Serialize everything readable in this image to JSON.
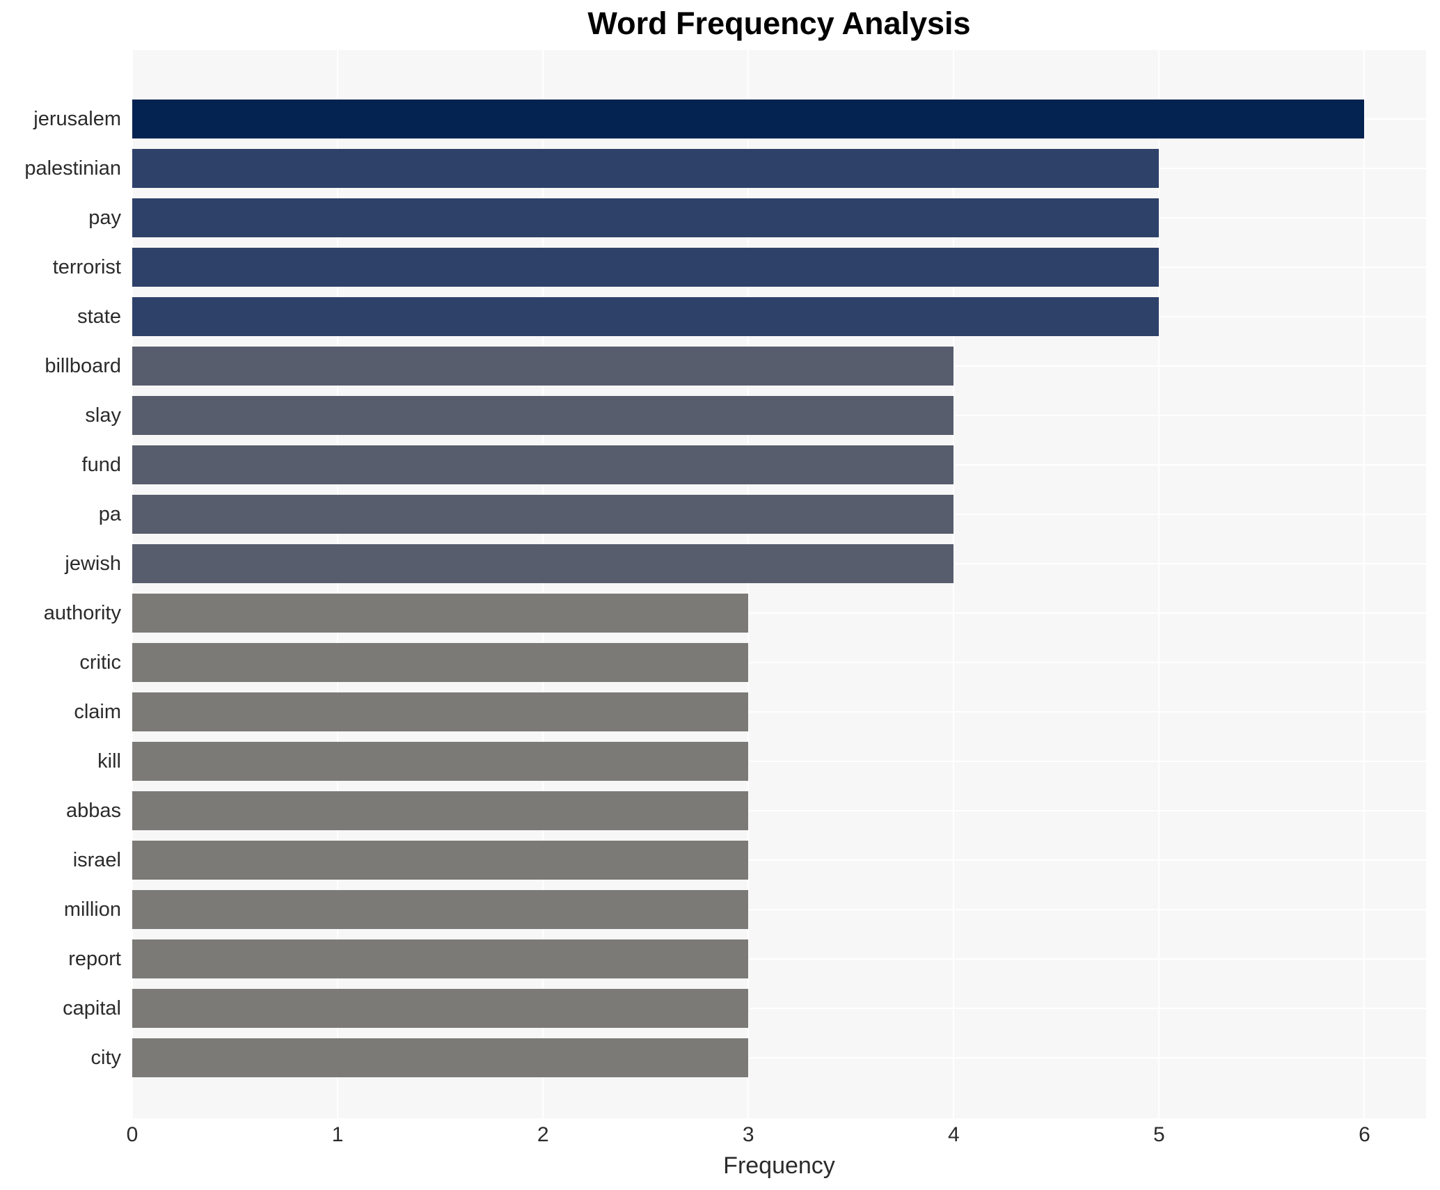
{
  "chart_data": {
    "type": "bar",
    "orientation": "horizontal",
    "title": "Word Frequency Analysis",
    "xlabel": "Frequency",
    "ylabel": "",
    "categories": [
      "jerusalem",
      "palestinian",
      "pay",
      "terrorist",
      "state",
      "billboard",
      "slay",
      "fund",
      "pa",
      "jewish",
      "authority",
      "critic",
      "claim",
      "kill",
      "abbas",
      "israel",
      "million",
      "report",
      "capital",
      "city"
    ],
    "values": [
      6,
      5,
      5,
      5,
      5,
      4,
      4,
      4,
      4,
      4,
      3,
      3,
      3,
      3,
      3,
      3,
      3,
      3,
      3,
      3
    ],
    "bar_colors": [
      "#052350",
      "#2e4169",
      "#2e4169",
      "#2e4169",
      "#2e4169",
      "#575d6c",
      "#575d6c",
      "#575d6c",
      "#575d6c",
      "#575d6c",
      "#7b7a77",
      "#7b7a77",
      "#7b7a77",
      "#7b7a77",
      "#7b7a77",
      "#7b7a77",
      "#7b7a77",
      "#7b7a77",
      "#7b7a77",
      "#7b7a77"
    ],
    "xlim": [
      0,
      6.3
    ],
    "xticks": [
      0,
      1,
      2,
      3,
      4,
      5,
      6
    ],
    "grid": true,
    "grid_color": "#ffffff",
    "panel_bg": "#f7f7f7",
    "legend": false,
    "legend_position": "none"
  }
}
